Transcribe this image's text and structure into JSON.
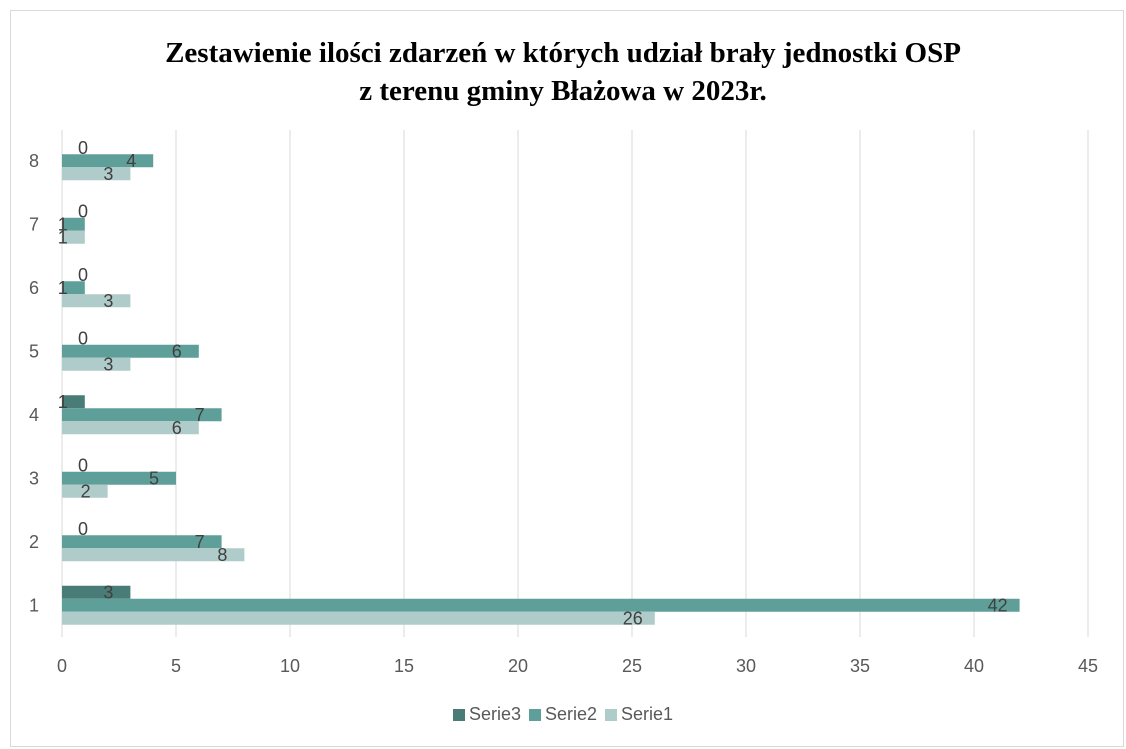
{
  "chart_data": {
    "type": "bar",
    "orientation": "horizontal",
    "title": "Zestawienie ilości zdarzeń w których udział brały jednostki OSP z terenu gminy Błażowa w 2023r.",
    "title_lines": [
      "Zestawienie ilości zdarzeń w których udział brały jednostki OSP",
      "z terenu gminy Błażowa w 2023r."
    ],
    "categories": [
      "1",
      "2",
      "3",
      "4",
      "5",
      "6",
      "7",
      "8"
    ],
    "series": [
      {
        "name": "Serie1",
        "color": "#b0ccca",
        "values": [
          26,
          8,
          2,
          6,
          3,
          3,
          1,
          3
        ]
      },
      {
        "name": "Serie2",
        "color": "#5f9f99",
        "values": [
          42,
          7,
          5,
          7,
          6,
          1,
          1,
          4
        ]
      },
      {
        "name": "Serie3",
        "color": "#4a7c77",
        "values": [
          3,
          0,
          0,
          1,
          0,
          0,
          0,
          0
        ]
      }
    ],
    "legend_order": [
      "Serie3",
      "Serie2",
      "Serie1"
    ],
    "xlim": [
      0,
      45
    ],
    "xticks": [
      0,
      5,
      10,
      15,
      20,
      25,
      30,
      35,
      40,
      45
    ],
    "xlabel": "",
    "ylabel": "",
    "grid": "vertical",
    "legend_position": "bottom",
    "data_labels": true
  }
}
